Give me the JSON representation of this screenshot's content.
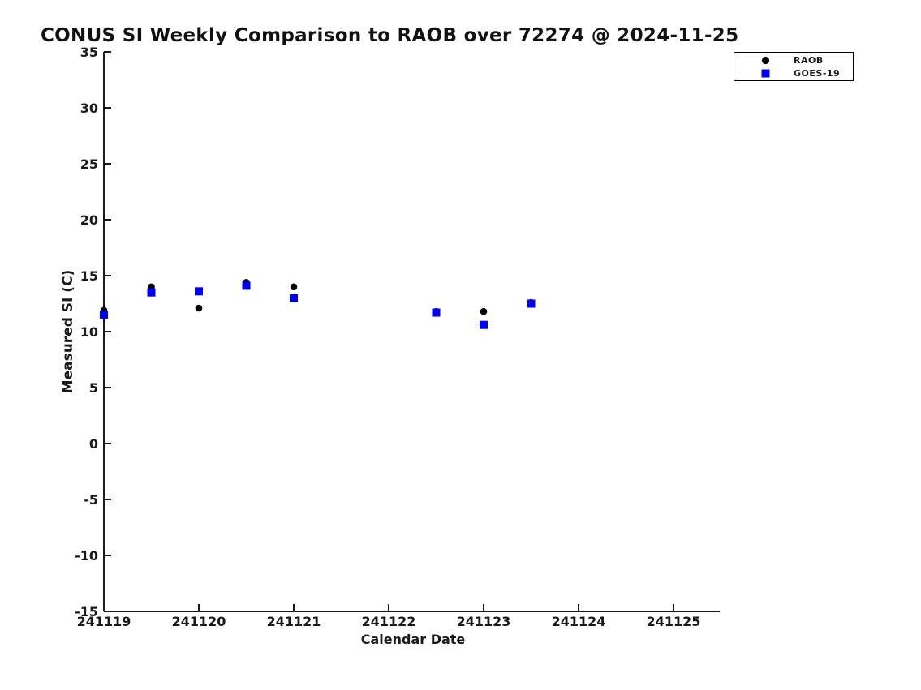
{
  "chart_data": {
    "type": "scatter",
    "title": "CONUS SI Weekly Comparison to RAOB over 72274 @ 2024-11-25",
    "xlabel": "Calendar Date",
    "ylabel": "Measured SI (C)",
    "xlim": [
      241119,
      241125.5
    ],
    "ylim": [
      -15,
      35
    ],
    "x_ticks": [
      241119,
      241120,
      241121,
      241122,
      241123,
      241124,
      241125
    ],
    "y_ticks": [
      35,
      30,
      25,
      20,
      15,
      10,
      5,
      0,
      -5,
      -10,
      -15
    ],
    "grid": false,
    "legend_position": "top-right",
    "axis_color": "#1a1a1a",
    "series": [
      {
        "name": "RAOB",
        "marker": "circle",
        "color": "#000000",
        "x": [
          241119,
          241119.5,
          241120,
          241120.5,
          241121,
          241122.5,
          241123,
          241123.5
        ],
        "y": [
          11.9,
          14.0,
          12.1,
          14.4,
          14.0,
          11.8,
          11.8,
          12.6
        ]
      },
      {
        "name": "GOES-19",
        "marker": "square",
        "color": "#0000ee",
        "x": [
          241119,
          241119.5,
          241120,
          241120.5,
          241121,
          241122.5,
          241123,
          241123.5
        ],
        "y": [
          11.5,
          13.5,
          13.6,
          14.1,
          13.0,
          11.7,
          10.6,
          12.5
        ]
      }
    ]
  }
}
